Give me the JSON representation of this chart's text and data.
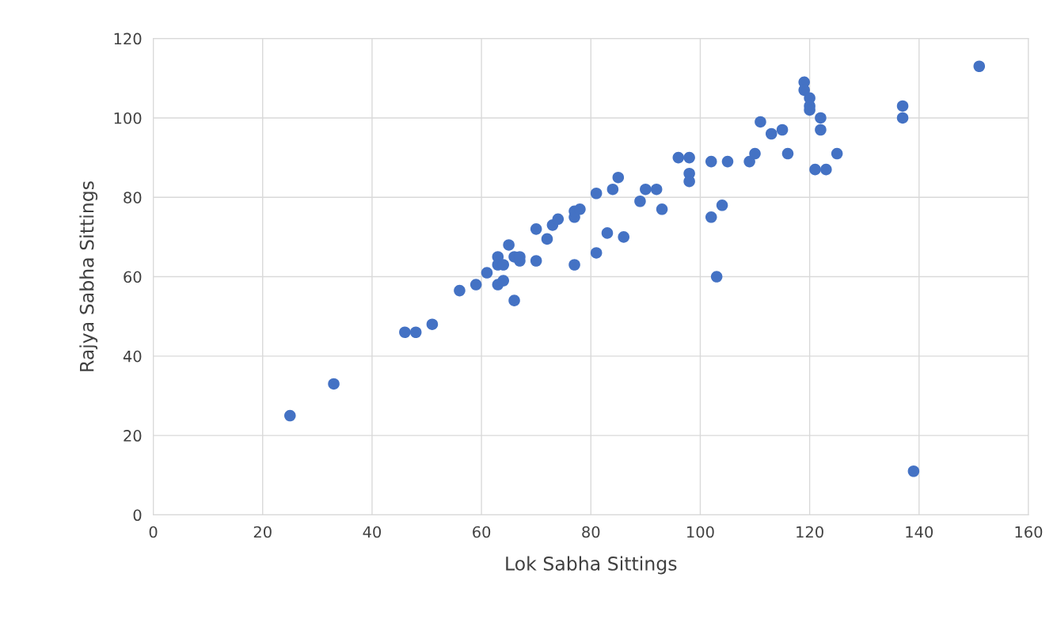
{
  "chart_data": {
    "type": "scatter",
    "xlabel": "Lok Sabha Sittings",
    "ylabel": "Rajya Sabha Sittings",
    "x": [
      25,
      33,
      46,
      48,
      51,
      56,
      59,
      61,
      63,
      63,
      63,
      64,
      64,
      65,
      66,
      66,
      67,
      67,
      70,
      70,
      72,
      73,
      74,
      77,
      77,
      77,
      78,
      81,
      81,
      83,
      84,
      85,
      86,
      89,
      90,
      92,
      93,
      96,
      98,
      98,
      98,
      102,
      102,
      103,
      104,
      105,
      109,
      110,
      111,
      113,
      115,
      116,
      119,
      119,
      120,
      120,
      120,
      121,
      122,
      122,
      123,
      125,
      137,
      137,
      139,
      151
    ],
    "series": [
      {
        "color": "#4472c4",
        "values": [
          25,
          33,
          46,
          46,
          48,
          56.5,
          58,
          61,
          65,
          63,
          58,
          59,
          63,
          68,
          54,
          65,
          64,
          65,
          72,
          64,
          69.5,
          73,
          74.5,
          63,
          75,
          76.5,
          77,
          81,
          66,
          71,
          82,
          85,
          70,
          79,
          82,
          82,
          77,
          90,
          90,
          86,
          84,
          75,
          89,
          60,
          78,
          89,
          89,
          91,
          99,
          96,
          97,
          91,
          109,
          107,
          105,
          103,
          102,
          87,
          100,
          97,
          87,
          91,
          103,
          100,
          11,
          113
        ]
      }
    ],
    "xlim": [
      0,
      160
    ],
    "xticks": [
      0,
      20,
      40,
      60,
      80,
      100,
      120,
      140,
      160
    ],
    "ylim": [
      0,
      120
    ],
    "yticks": [
      0,
      20,
      40,
      60,
      80,
      100,
      120
    ],
    "grid": true,
    "marker": "circle"
  }
}
